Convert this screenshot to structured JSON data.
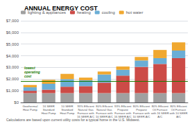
{
  "chart_data": {
    "type": "bar",
    "title": "ANNUAL ENERGY COST",
    "categories": [
      "Geothermal\nHeat Pump",
      "16 SEER\nStandard\nHeat Pump",
      "10 SEER\nStandard\nHeat Pump",
      "93% Efficient\nNatural Gas\nFurnace with\n16 SEER A/C",
      "80% Efficient\nNatural Gas\nFurnace with\n10 SEER A/C",
      "93% Efficient\nPropane\nFurnace with\n16 SEER A/C",
      "80% Efficient\nPropane\nFurnace with\n10 SEER A/C",
      "80% Efficient\nOil Furnace\nwith 16 SEER\nA/C",
      "80% Efficient\nOil Furnace\nwith 10 SEER\nA/C"
    ],
    "series": [
      {
        "name": "lighting & appliances",
        "color": "#a0a0a0",
        "values": [
          800,
          800,
          800,
          800,
          800,
          800,
          800,
          800,
          800
        ]
      },
      {
        "name": "heating",
        "color": "#cc4b47",
        "values": [
          200,
          300,
          550,
          600,
          900,
          1500,
          2250,
          2500,
          3000
        ]
      },
      {
        "name": "cooling",
        "color": "#6baed6",
        "values": [
          300,
          500,
          650,
          500,
          700,
          500,
          550,
          500,
          650
        ]
      },
      {
        "name": "hot water",
        "color": "#f0a830",
        "values": [
          200,
          350,
          450,
          230,
          250,
          280,
          300,
          700,
          700
        ]
      }
    ],
    "stacked": true,
    "ylim": [
      0,
      7000
    ],
    "yticks": [
      {
        "value": 0,
        "label": "$0"
      },
      {
        "value": 1000,
        "label": "$1,000"
      },
      {
        "value": 2000,
        "label": "$2,000"
      },
      {
        "value": 3000,
        "label": "$3,000"
      },
      {
        "value": 4000,
        "label": "$4,000"
      },
      {
        "value": 5000,
        "label": "$5,000"
      },
      {
        "value": 6000,
        "label": "$6,000"
      },
      {
        "value": 7000,
        "label": "$7,000"
      }
    ],
    "grid": true,
    "legend": "top",
    "annotations": [
      {
        "type": "hline",
        "y": 1800,
        "text": "lowest\noperating\ncost",
        "color": "#1a7a00"
      }
    ],
    "footnote": "Calculations are based upon current utility costs for a typical home in the U.S. Midwest."
  }
}
